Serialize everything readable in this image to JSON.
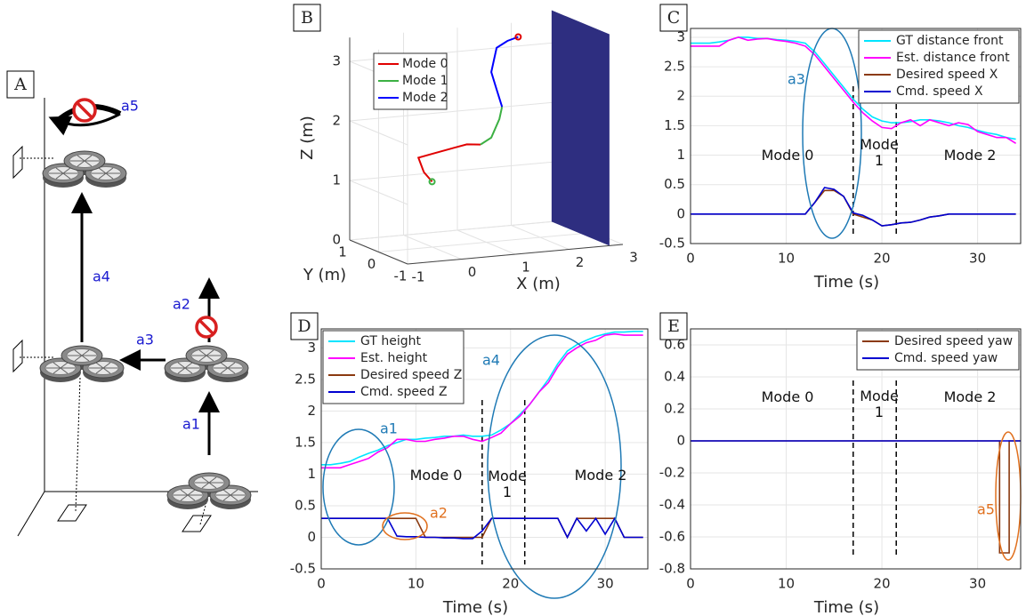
{
  "diagram": {
    "panel_label": "A",
    "labels": [
      "a1",
      "a2",
      "a3",
      "a4",
      "a5"
    ],
    "label_color": "#1a1ad0"
  },
  "chart_data": [
    {
      "type": "line3d",
      "panel_label": "B",
      "xlabel": "X (m)",
      "ylabel": "Y (m)",
      "zlabel": "Z (m)",
      "xlim": [
        -1,
        3
      ],
      "ylim": [
        -1,
        1
      ],
      "zlim": [
        0,
        3.4
      ],
      "xticks": [
        -1,
        0,
        1,
        2,
        3
      ],
      "yticks": [
        -1,
        0,
        1
      ],
      "zticks": [
        0,
        1,
        2,
        3
      ],
      "grid": true,
      "legend": "northwest",
      "obstacle": {
        "x": 2.75,
        "height": 3.55,
        "color": "#2e2e80"
      },
      "series": [
        {
          "name": "Mode 0",
          "color": "#e00000",
          "x": [
            0.1,
            0.0,
            -0.1,
            0.2,
            0.5,
            0.8,
            1.0
          ],
          "y": [
            0.2,
            0.3,
            0.3,
            0.3,
            0.3,
            0.3,
            0.2
          ],
          "z": [
            1.05,
            1.2,
            1.45,
            1.5,
            1.55,
            1.6,
            1.6
          ]
        },
        {
          "name": "Mode 1",
          "color": "#3cb043",
          "x": [
            1.0,
            1.2,
            1.35,
            1.4
          ],
          "y": [
            0.2,
            0.2,
            0.2,
            0.2
          ],
          "z": [
            1.6,
            1.7,
            2.0,
            2.2
          ]
        },
        {
          "name": "Mode 2",
          "color": "#0000ff",
          "x": [
            1.4,
            1.3,
            1.2,
            1.25,
            1.3,
            1.5,
            1.7
          ],
          "y": [
            0.2,
            0.2,
            0.2,
            0.2,
            0.2,
            0.2,
            0.2
          ],
          "z": [
            2.2,
            2.5,
            2.8,
            3.0,
            3.2,
            3.3,
            3.35
          ]
        }
      ]
    },
    {
      "type": "line",
      "panel_label": "C",
      "xlabel": "Time (s)",
      "xlim": [
        0,
        34.5
      ],
      "ylim": [
        -0.5,
        3.15
      ],
      "xticks": [
        0,
        10,
        20,
        30
      ],
      "yticks": [
        -0.5,
        0,
        0.5,
        1,
        1.5,
        2,
        2.5,
        3
      ],
      "grid": true,
      "legend": "northeast",
      "mode_boundaries": [
        17,
        21.5
      ],
      "mode_labels": [
        "Mode 0",
        "Mode 1",
        "Mode 2"
      ],
      "callouts": [
        {
          "text": "a3",
          "color": "#1f7ab5"
        }
      ],
      "x": [
        0,
        1,
        2,
        3,
        4,
        5,
        6,
        7,
        8,
        9,
        10,
        11,
        12,
        13,
        14,
        15,
        16,
        17,
        18,
        19,
        20,
        21,
        22,
        23,
        24,
        25,
        26,
        27,
        28,
        29,
        30,
        31,
        32,
        33,
        34
      ],
      "series": [
        {
          "name": "GT distance front",
          "color": "#00e5ff",
          "values": [
            2.9,
            2.9,
            2.9,
            2.92,
            2.95,
            3.0,
            3.0,
            2.98,
            2.98,
            2.96,
            2.95,
            2.93,
            2.9,
            2.75,
            2.55,
            2.35,
            2.15,
            1.95,
            1.78,
            1.65,
            1.58,
            1.55,
            1.55,
            1.57,
            1.6,
            1.6,
            1.58,
            1.55,
            1.5,
            1.47,
            1.42,
            1.38,
            1.35,
            1.3,
            1.27
          ]
        },
        {
          "name": "Est. distance front",
          "color": "#ff00ff",
          "values": [
            2.85,
            2.85,
            2.85,
            2.85,
            2.95,
            3.0,
            2.95,
            2.97,
            2.98,
            2.95,
            2.93,
            2.9,
            2.85,
            2.7,
            2.5,
            2.3,
            2.1,
            1.9,
            1.72,
            1.58,
            1.47,
            1.45,
            1.55,
            1.6,
            1.5,
            1.6,
            1.55,
            1.5,
            1.55,
            1.52,
            1.4,
            1.35,
            1.3,
            1.3,
            1.2
          ]
        },
        {
          "name": "Desired speed X",
          "color": "#8b3a10",
          "values": [
            0,
            0,
            0,
            0,
            0,
            0,
            0,
            0,
            0,
            0,
            0,
            0,
            0,
            0.2,
            0.4,
            0.4,
            0.3,
            0,
            -0.05,
            -0.1,
            -0.2,
            -0.18,
            -0.15,
            -0.14,
            -0.1,
            -0.05,
            -0.03,
            0,
            0,
            0,
            0,
            0,
            0,
            0,
            0
          ]
        },
        {
          "name": "Cmd. speed X",
          "color": "#0000d0",
          "values": [
            0,
            0,
            0,
            0,
            0,
            0,
            0,
            0,
            0,
            0,
            0,
            0,
            0,
            0.2,
            0.45,
            0.42,
            0.3,
            0.02,
            -0.02,
            -0.1,
            -0.2,
            -0.18,
            -0.15,
            -0.14,
            -0.1,
            -0.05,
            -0.03,
            0,
            0,
            0,
            0,
            0,
            0,
            0,
            0
          ]
        }
      ]
    },
    {
      "type": "line",
      "panel_label": "D",
      "xlabel": "Time (s)",
      "xlim": [
        0,
        34.5
      ],
      "ylim": [
        -0.5,
        3.3
      ],
      "xticks": [
        0,
        10,
        20,
        30
      ],
      "yticks": [
        -0.5,
        0,
        0.5,
        1,
        1.5,
        2,
        2.5,
        3
      ],
      "grid": true,
      "legend": "northwest",
      "mode_boundaries": [
        17,
        21.5
      ],
      "mode_labels": [
        "Mode 0",
        "Mode 1",
        "Mode 2"
      ],
      "callouts": [
        {
          "text": "a1",
          "color": "#1f7ab5"
        },
        {
          "text": "a2",
          "color": "#e0701e"
        },
        {
          "text": "a4",
          "color": "#1f7ab5"
        }
      ],
      "x": [
        0,
        1,
        2,
        3,
        4,
        5,
        6,
        7,
        8,
        9,
        10,
        11,
        12,
        13,
        14,
        15,
        16,
        17,
        18,
        19,
        20,
        21,
        22,
        23,
        24,
        25,
        26,
        27,
        28,
        29,
        30,
        31,
        32,
        33,
        34
      ],
      "series": [
        {
          "name": "GT height",
          "color": "#00e5ff",
          "values": [
            1.15,
            1.15,
            1.17,
            1.2,
            1.27,
            1.33,
            1.38,
            1.45,
            1.5,
            1.55,
            1.55,
            1.57,
            1.58,
            1.6,
            1.6,
            1.62,
            1.6,
            1.6,
            1.62,
            1.7,
            1.8,
            1.95,
            2.1,
            2.3,
            2.5,
            2.75,
            2.95,
            3.05,
            3.12,
            3.18,
            3.22,
            3.25,
            3.25,
            3.26,
            3.26
          ]
        },
        {
          "name": "Est. height",
          "color": "#ff00ff",
          "values": [
            1.1,
            1.1,
            1.1,
            1.15,
            1.2,
            1.25,
            1.35,
            1.42,
            1.55,
            1.55,
            1.52,
            1.52,
            1.55,
            1.57,
            1.6,
            1.6,
            1.55,
            1.52,
            1.58,
            1.65,
            1.8,
            1.92,
            2.1,
            2.3,
            2.45,
            2.7,
            2.9,
            3.0,
            3.08,
            3.12,
            3.2,
            3.22,
            3.2,
            3.2,
            3.2
          ]
        },
        {
          "name": "Desired speed Z",
          "color": "#8b3a10",
          "values": [
            0.3,
            0.3,
            0.3,
            0.3,
            0.3,
            0.3,
            0.3,
            0.3,
            0.3,
            0.3,
            0.3,
            0,
            0,
            0,
            0,
            0,
            0,
            0,
            0.3,
            0.3,
            0.3,
            0.3,
            0.3,
            0.3,
            0.3,
            0.3,
            0,
            0.3,
            0.3,
            0.3,
            0.3,
            0.3,
            0,
            0,
            0
          ]
        },
        {
          "name": "Cmd. speed Z",
          "color": "#0000d0",
          "values": [
            0.3,
            0.3,
            0.3,
            0.3,
            0.3,
            0.3,
            0.3,
            0.3,
            0.02,
            0.01,
            0.01,
            0,
            0,
            -0.01,
            -0.01,
            -0.02,
            -0.02,
            0.1,
            0.3,
            0.3,
            0.3,
            0.3,
            0.3,
            0.3,
            0.3,
            0.3,
            0,
            0.3,
            0.1,
            0.3,
            0.05,
            0.3,
            0,
            0,
            0
          ]
        }
      ]
    },
    {
      "type": "line",
      "panel_label": "E",
      "xlabel": "Time (s)",
      "xlim": [
        0,
        34.5
      ],
      "ylim": [
        -0.8,
        0.7
      ],
      "xticks": [
        0,
        10,
        20,
        30
      ],
      "yticks": [
        -0.8,
        -0.6,
        -0.4,
        -0.2,
        0,
        0.2,
        0.4,
        0.6
      ],
      "grid": true,
      "legend": "northeast",
      "mode_boundaries": [
        17,
        21.5
      ],
      "mode_labels": [
        "Mode 0",
        "Mode 1",
        "Mode 2"
      ],
      "callouts": [
        {
          "text": "a5",
          "color": "#e0701e"
        }
      ],
      "x": [
        0,
        32.3,
        32.3,
        33.3,
        33.3,
        34.5
      ],
      "series": [
        {
          "name": "Desired speed yaw",
          "color": "#8b3a10",
          "values": [
            0,
            0,
            -0.7,
            -0.7,
            0,
            0
          ]
        },
        {
          "name": "Cmd. speed yaw",
          "color": "#0000d0",
          "values": [
            0,
            0,
            0,
            0,
            0,
            0
          ]
        }
      ]
    }
  ]
}
